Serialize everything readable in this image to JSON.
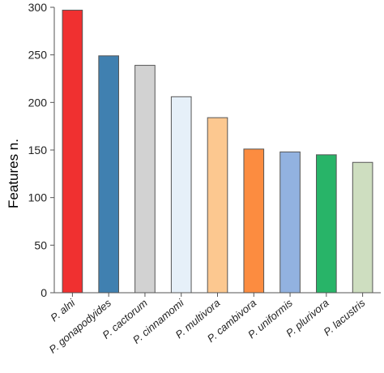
{
  "chart_data": {
    "type": "bar",
    "title": "",
    "xlabel": "",
    "ylabel": "Features n.",
    "ylim": [
      0,
      300
    ],
    "yticks": [
      0,
      50,
      100,
      150,
      200,
      250,
      300
    ],
    "grid": false,
    "categories": [
      "P. alni",
      "P. gonapodyides",
      "P. cactorum",
      "P. cinnamomi",
      "P. multivora",
      "P. cambivora",
      "P. uniformis",
      "P. plurivora",
      "P. lacustris"
    ],
    "values": [
      297,
      249,
      239,
      206,
      184,
      151,
      148,
      145,
      137
    ],
    "colors": [
      "#f03030",
      "#4080b0",
      "#d2d2d2",
      "#e6f0f9",
      "#fcc890",
      "#fc8c40",
      "#92b2e0",
      "#28b468",
      "#cedec0"
    ],
    "edge_color": "#555555"
  }
}
